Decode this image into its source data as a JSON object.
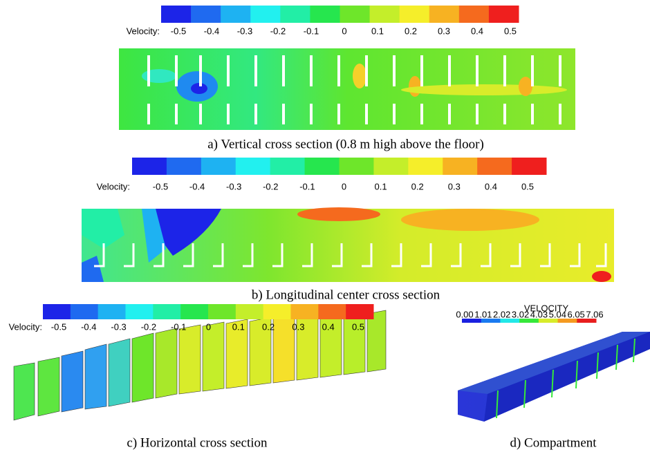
{
  "panels": [
    {
      "colorbar": {
        "label": "Velocity:",
        "ticks": [
          "-0.5",
          "-0.4",
          "-0.3",
          "-0.2",
          "-0.1",
          "0",
          "0.1",
          "0.2",
          "0.3",
          "0.4",
          "0.5"
        ],
        "colors": [
          "#1c24e8",
          "#1f6af0",
          "#1eb2f2",
          "#22f0ef",
          "#22eea6",
          "#26e64e",
          "#6ee62a",
          "#c4ee2a",
          "#f5ee2a",
          "#f7b222",
          "#f56a1e",
          "#ef1f1e"
        ]
      },
      "caption": "a) Vertical cross section (0.8 m high above the floor)"
    },
    {
      "colorbar": {
        "label": "Velocity:",
        "ticks": [
          "-0.5",
          "-0.4",
          "-0.3",
          "-0.2",
          "-0.1",
          "0",
          "0.1",
          "0.2",
          "0.3",
          "0.4",
          "0.5"
        ],
        "colors": [
          "#1c24e8",
          "#1f6af0",
          "#1eb2f2",
          "#22f0ef",
          "#22eea6",
          "#26e64e",
          "#6ee62a",
          "#c4ee2a",
          "#f5ee2a",
          "#f7b222",
          "#f56a1e",
          "#ef1f1e"
        ]
      },
      "caption": "b) Longitudinal center cross section"
    },
    {
      "colorbar": {
        "label": "Velocity:",
        "ticks": [
          "-0.5",
          "-0.4",
          "-0.3",
          "-0.2",
          "-0.1",
          "0",
          "0.1",
          "0.2",
          "0.3",
          "0.4",
          "0.5"
        ],
        "colors": [
          "#1c24e8",
          "#1f6af0",
          "#1eb2f2",
          "#22f0ef",
          "#22eea6",
          "#26e64e",
          "#6ee62a",
          "#c4ee2a",
          "#f5ee2a",
          "#f7b222",
          "#f56a1e",
          "#ef1f1e"
        ]
      },
      "caption": "c) Horizontal cross section"
    },
    {
      "colorbar": {
        "label": "VELOCITY",
        "ticks": [
          "0.00",
          "1.01",
          "2.02",
          "3.02",
          "4.03",
          "5.04",
          "6.05",
          "7.06"
        ],
        "colors": [
          "#1a20e0",
          "#1a7af0",
          "#22e8e8",
          "#36e83a",
          "#d8ec2a",
          "#f59a20",
          "#e81e1e"
        ]
      },
      "caption": "d) Compartment"
    }
  ]
}
